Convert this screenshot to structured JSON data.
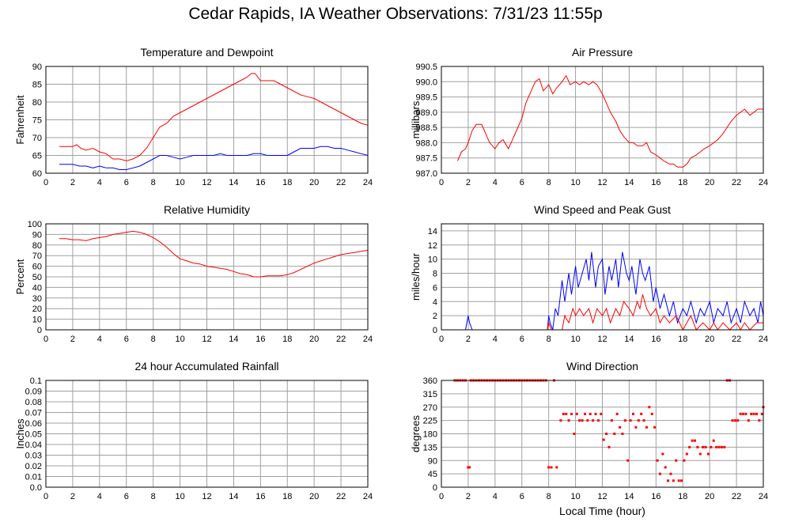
{
  "title": "Cedar Rapids, IA Weather Observations: 7/31/23 11:55p",
  "x_axis_label": "Local Time (hour)",
  "x_ticks": [
    "0",
    "2",
    "4",
    "6",
    "8",
    "10",
    "12",
    "14",
    "16",
    "18",
    "20",
    "22",
    "24"
  ],
  "colors": {
    "primary": "#ff0000",
    "secondary": "#0000ff",
    "grid": "#a0a0a0",
    "frame": "#000000"
  },
  "chart_data": [
    {
      "id": "temp",
      "type": "line",
      "title": "Temperature and Dewpoint",
      "xlabel": "",
      "ylabel": "Fahrenheit",
      "xlim": [
        0,
        24
      ],
      "ylim": [
        60,
        90
      ],
      "y_ticks": [
        "60",
        "65",
        "70",
        "75",
        "80",
        "85",
        "90"
      ],
      "grid": true,
      "series": [
        {
          "color": "#ff0000",
          "x": [
            1,
            1.5,
            2,
            2.3,
            2.6,
            3,
            3.5,
            4,
            4.5,
            5,
            5.5,
            6,
            6.5,
            7,
            7.5,
            8,
            8.5,
            9,
            9.5,
            10,
            10.5,
            11,
            11.5,
            12,
            12.5,
            13,
            13.5,
            14,
            14.5,
            15,
            15.3,
            15.6,
            16,
            16.5,
            17,
            17.5,
            18,
            18.5,
            19,
            19.5,
            20,
            20.5,
            21,
            21.5,
            22,
            22.5,
            23,
            23.5,
            24
          ],
          "y": [
            67.5,
            67.5,
            67.5,
            68,
            67,
            66.5,
            67,
            66,
            65.5,
            64,
            64,
            63.5,
            64,
            65,
            67,
            70,
            73,
            74,
            76,
            77,
            78,
            79,
            80,
            81,
            82,
            83,
            84,
            85,
            86,
            87,
            88,
            88,
            86,
            86,
            86,
            85,
            84,
            83,
            82,
            81.5,
            81,
            80,
            79,
            78,
            77,
            76,
            75,
            74,
            73.5
          ]
        },
        {
          "color": "#0000ff",
          "x": [
            1,
            1.5,
            2,
            2.5,
            3,
            3.5,
            4,
            4.5,
            5,
            5.5,
            6,
            6.5,
            7,
            7.5,
            8,
            8.5,
            9,
            9.5,
            10,
            10.5,
            11,
            11.5,
            12,
            12.5,
            13,
            13.5,
            14,
            14.5,
            15,
            15.5,
            16,
            16.5,
            17,
            17.5,
            18,
            18.5,
            19,
            19.5,
            20,
            20.5,
            21,
            21.5,
            22,
            22.5,
            23,
            23.5,
            24
          ],
          "y": [
            62.5,
            62.5,
            62.5,
            62,
            62,
            61.5,
            62,
            61.5,
            61.5,
            61,
            61,
            61.5,
            62,
            63,
            64,
            65,
            65,
            64.5,
            64,
            64.5,
            65,
            65,
            65,
            65,
            65.5,
            65,
            65,
            65,
            65,
            65.5,
            65.5,
            65,
            65,
            65,
            65,
            66,
            67,
            67,
            67,
            67.5,
            67.5,
            67,
            67,
            66.5,
            66,
            65.5,
            65
          ]
        }
      ]
    },
    {
      "id": "pressure",
      "type": "line",
      "title": "Air Pressure",
      "xlabel": "",
      "ylabel": "millibars",
      "xlim": [
        0,
        24
      ],
      "ylim": [
        987,
        990.5
      ],
      "y_ticks": [
        "987.0",
        "987.5",
        "988.0",
        "988.5",
        "989.0",
        "989.5",
        "990.0",
        "990.5"
      ],
      "grid": true,
      "series": [
        {
          "color": "#ff0000",
          "x": [
            1.2,
            1.5,
            1.8,
            2,
            2.3,
            2.6,
            3,
            3.3,
            3.6,
            4,
            4.3,
            4.6,
            5,
            5.3,
            5.6,
            6,
            6.3,
            6.6,
            7,
            7.3,
            7.6,
            8,
            8.3,
            8.6,
            9,
            9.3,
            9.6,
            10,
            10.3,
            10.6,
            11,
            11.3,
            11.6,
            12,
            12.3,
            12.6,
            13,
            13.3,
            13.6,
            14,
            14.3,
            14.6,
            15,
            15.3,
            15.6,
            16,
            16.3,
            16.6,
            17,
            17.3,
            17.6,
            18,
            18.3,
            18.6,
            19,
            19.3,
            19.6,
            20,
            20.3,
            20.6,
            21,
            21.3,
            21.6,
            22,
            22.3,
            22.6,
            23,
            23.3,
            23.6,
            24
          ],
          "y": [
            987.4,
            987.7,
            987.8,
            988,
            988.4,
            988.6,
            988.6,
            988.3,
            988,
            987.8,
            988,
            988.1,
            987.8,
            988.1,
            988.4,
            988.8,
            989.3,
            989.6,
            990,
            990.1,
            989.7,
            989.9,
            989.6,
            989.8,
            990,
            990.2,
            989.9,
            990,
            989.9,
            990,
            989.9,
            990,
            989.9,
            989.6,
            989.3,
            989,
            988.7,
            988.4,
            988.2,
            988,
            988,
            987.9,
            987.9,
            988,
            987.7,
            987.6,
            987.5,
            987.4,
            987.3,
            987.3,
            987.2,
            987.2,
            987.3,
            987.5,
            987.6,
            987.7,
            987.8,
            987.9,
            988,
            988.1,
            988.3,
            988.5,
            988.7,
            988.9,
            989,
            989.1,
            988.9,
            989,
            989.1,
            989.1
          ]
        }
      ]
    },
    {
      "id": "rh",
      "type": "line",
      "title": "Relative Humidity",
      "xlabel": "",
      "ylabel": "Percent",
      "xlim": [
        0,
        24
      ],
      "ylim": [
        0,
        100
      ],
      "y_ticks": [
        "0",
        "10",
        "20",
        "30",
        "40",
        "50",
        "60",
        "70",
        "80",
        "90",
        "100"
      ],
      "grid": true,
      "series": [
        {
          "color": "#ff0000",
          "x": [
            1,
            1.5,
            2,
            2.5,
            3,
            3.5,
            4,
            4.5,
            5,
            5.5,
            6,
            6.5,
            7,
            7.5,
            8,
            8.5,
            9,
            9.5,
            10,
            10.5,
            11,
            11.5,
            12,
            12.5,
            13,
            13.5,
            14,
            14.5,
            15,
            15.5,
            16,
            16.5,
            17,
            17.5,
            18,
            18.5,
            19,
            19.5,
            20,
            20.5,
            21,
            21.5,
            22,
            22.5,
            23,
            23.5,
            24
          ],
          "y": [
            86,
            86,
            85,
            85,
            84,
            86,
            87,
            88,
            90,
            91,
            92,
            93,
            92,
            90,
            87,
            83,
            78,
            72,
            67,
            65,
            63,
            62,
            60,
            59,
            58,
            57,
            55,
            53,
            52,
            50,
            50,
            51,
            51,
            51,
            52,
            54,
            57,
            60,
            63,
            65,
            67,
            69,
            71,
            72,
            73,
            74,
            75
          ]
        }
      ]
    },
    {
      "id": "wind",
      "type": "line",
      "title": "Wind Speed and Peak Gust",
      "xlabel": "",
      "ylabel": "miles/hour",
      "xlim": [
        0,
        24
      ],
      "ylim": [
        0,
        15
      ],
      "y_ticks": [
        "0",
        "2",
        "4",
        "6",
        "8",
        "10",
        "12",
        "14"
      ],
      "grid": true,
      "series": [
        {
          "color": "#0000ff",
          "x": [
            1.8,
            2,
            2.1,
            2.3,
            7.9,
            8,
            8.1,
            8.3,
            8.5,
            8.7,
            9,
            9.2,
            9.5,
            9.7,
            10,
            10.2,
            10.5,
            10.8,
            11,
            11.2,
            11.5,
            11.7,
            12,
            12.2,
            12.5,
            12.7,
            13,
            13.2,
            13.5,
            13.8,
            14,
            14.2,
            14.5,
            14.8,
            15,
            15.2,
            15.5,
            15.8,
            16,
            16.3,
            16.6,
            17,
            17.3,
            17.6,
            18,
            18.3,
            18.6,
            19,
            19.3,
            19.6,
            20,
            20.3,
            20.6,
            21,
            21.3,
            21.6,
            22,
            22.3,
            22.6,
            23,
            23.3,
            23.6,
            23.8,
            24
          ],
          "y": [
            0,
            2,
            1,
            0,
            0,
            2,
            1,
            0,
            3,
            2,
            7,
            4,
            8,
            5,
            9,
            6,
            8,
            10,
            7,
            11,
            6,
            9,
            10,
            5,
            9,
            7,
            10,
            6,
            11,
            8,
            7,
            9,
            5,
            10,
            8,
            7,
            9,
            4,
            6,
            3,
            5,
            2,
            4,
            1,
            3,
            2,
            4,
            1,
            3,
            2,
            4,
            1,
            3,
            2,
            4,
            1,
            3,
            1,
            4,
            2,
            3,
            1,
            4,
            2
          ]
        },
        {
          "color": "#ff0000",
          "x": [
            7.9,
            8,
            8.2,
            9,
            9.2,
            9.5,
            9.8,
            10,
            10.3,
            10.6,
            11,
            11.3,
            11.6,
            12,
            12.3,
            12.6,
            13,
            13.3,
            13.6,
            14,
            14.3,
            14.6,
            14.8,
            15,
            15.3,
            15.6,
            16,
            16.3,
            16.6,
            17,
            17.5,
            18,
            18.3,
            18.6,
            19,
            19.5,
            20,
            20.3,
            20.6,
            21,
            21.5,
            22,
            22.3,
            22.6,
            23,
            23.5,
            24
          ],
          "y": [
            0,
            1,
            0,
            0,
            2,
            1,
            3,
            2,
            3,
            2,
            3,
            1,
            3,
            2,
            3,
            1,
            3,
            2,
            4,
            3,
            2,
            4,
            3,
            5,
            3,
            2,
            3,
            1,
            2,
            1,
            2,
            0,
            1,
            2,
            0,
            1,
            0,
            1,
            0,
            1,
            0,
            1,
            0,
            1,
            0,
            1,
            1
          ]
        }
      ]
    },
    {
      "id": "rain",
      "type": "line",
      "title": "24 hour Accumulated Rainfall",
      "xlabel": "",
      "ylabel": "Inches",
      "xlim": [
        0,
        24
      ],
      "ylim": [
        0,
        0.1
      ],
      "y_ticks": [
        "0.0",
        "0.01",
        "0.02",
        "0.03",
        "0.04",
        "0.05",
        "0.06",
        "0.07",
        "0.08",
        "0.09",
        "0.1"
      ],
      "grid": true,
      "series": [
        {
          "color": "#ff0000",
          "x": [
            1,
            24
          ],
          "y": [
            0,
            0
          ]
        }
      ]
    },
    {
      "id": "wdir",
      "type": "scatter",
      "title": "Wind Direction",
      "xlabel": "Local Time (hour)",
      "ylabel": "degrees",
      "xlim": [
        0,
        24
      ],
      "ylim": [
        0,
        360
      ],
      "y_ticks": [
        "0",
        "45",
        "90",
        "135",
        "180",
        "225",
        "270",
        "315",
        "360"
      ],
      "grid": true,
      "series": [
        {
          "color": "#ff0000",
          "x": [
            1,
            1.2,
            1.4,
            1.6,
            1.8,
            2,
            2.1,
            2.2,
            2.4,
            2.6,
            2.8,
            3,
            3.2,
            3.4,
            3.6,
            3.8,
            4,
            4.2,
            4.4,
            4.6,
            4.8,
            5,
            5.2,
            5.4,
            5.6,
            5.8,
            6,
            6.2,
            6.4,
            6.6,
            6.8,
            7,
            7.2,
            7.4,
            7.6,
            7.8,
            8,
            8.2,
            8.4,
            8.6,
            8.9,
            9.1,
            9.3,
            9.5,
            9.7,
            9.9,
            10.1,
            10.3,
            10.5,
            10.7,
            10.9,
            11.1,
            11.3,
            11.5,
            11.7,
            11.9,
            12.1,
            12.3,
            12.5,
            12.7,
            12.9,
            13.1,
            13.3,
            13.5,
            13.7,
            13.9,
            14.1,
            14.3,
            14.5,
            14.7,
            14.9,
            15.1,
            15.3,
            15.5,
            15.7,
            15.9,
            16.1,
            16.3,
            16.5,
            16.7,
            16.9,
            17.1,
            17.3,
            17.5,
            17.7,
            17.9,
            18.1,
            18.3,
            18.5,
            18.7,
            18.9,
            19.1,
            19.3,
            19.5,
            19.7,
            19.9,
            20.1,
            20.3,
            20.5,
            20.7,
            20.9,
            21.1,
            21.3,
            21.5,
            21.7,
            21.9,
            22.1,
            22.3,
            22.5,
            22.7,
            22.9,
            23.1,
            23.3,
            23.5,
            23.7,
            23.9,
            24
          ],
          "y": [
            360,
            360,
            360,
            360,
            360,
            67,
            67,
            360,
            360,
            360,
            360,
            360,
            360,
            360,
            360,
            360,
            360,
            360,
            360,
            360,
            360,
            360,
            360,
            360,
            360,
            360,
            360,
            360,
            360,
            360,
            360,
            360,
            360,
            360,
            360,
            360,
            67,
            67,
            360,
            67,
            225,
            247,
            247,
            225,
            247,
            180,
            247,
            225,
            225,
            247,
            225,
            247,
            225,
            247,
            225,
            247,
            160,
            180,
            135,
            225,
            180,
            247,
            202,
            180,
            225,
            90,
            225,
            247,
            202,
            225,
            247,
            225,
            202,
            270,
            247,
            202,
            90,
            45,
            112,
            67,
            22,
            45,
            22,
            90,
            22,
            22,
            90,
            112,
            135,
            157,
            157,
            135,
            112,
            135,
            135,
            112,
            135,
            157,
            135,
            135,
            135,
            135,
            360,
            360,
            225,
            225,
            225,
            247,
            247,
            247,
            225,
            247,
            247,
            247,
            225,
            247,
            270
          ]
        }
      ]
    }
  ]
}
